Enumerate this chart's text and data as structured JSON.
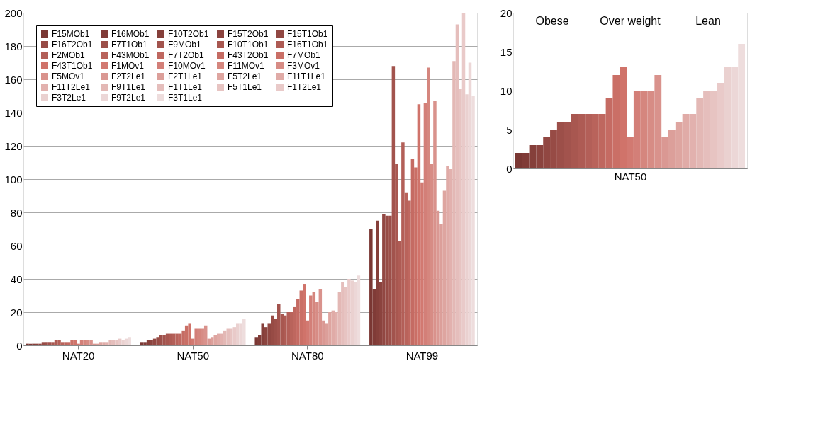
{
  "chart_data": [
    {
      "type": "bar",
      "categories": [
        "NAT20",
        "NAT50",
        "NAT80",
        "NAT99"
      ],
      "ylim": [
        0,
        200
      ],
      "yticks": [
        0,
        20,
        40,
        60,
        80,
        100,
        120,
        140,
        160,
        180,
        200
      ],
      "grid": "y",
      "legend": "top left",
      "series": [
        {
          "name": "F15MOb1",
          "color": "#7a3733",
          "values": [
            1,
            2,
            5,
            70
          ]
        },
        {
          "name": "F16MOb1",
          "color": "#803b37",
          "values": [
            1,
            2,
            6,
            34
          ]
        },
        {
          "name": "F10T2Ob1",
          "color": "#853f3a",
          "values": [
            1,
            3,
            13,
            75
          ]
        },
        {
          "name": "F15T2Ob1",
          "color": "#8b433e",
          "values": [
            1,
            3,
            11,
            38
          ]
        },
        {
          "name": "F15T1Ob1",
          "color": "#914742",
          "values": [
            1,
            4,
            13,
            79
          ]
        },
        {
          "name": "F16T2Ob1",
          "color": "#974b45",
          "values": [
            2,
            5,
            18,
            78
          ]
        },
        {
          "name": "F7T1Ob1",
          "color": "#9c4f49",
          "values": [
            2,
            6,
            16,
            78
          ]
        },
        {
          "name": "F9MOb1",
          "color": "#a2534d",
          "values": [
            2,
            6,
            25,
            168
          ]
        },
        {
          "name": "F10T1Ob1",
          "color": "#a85750",
          "values": [
            2,
            7,
            19,
            109
          ]
        },
        {
          "name": "F16T1Ob1",
          "color": "#ae5b54",
          "values": [
            3,
            7,
            18,
            63
          ]
        },
        {
          "name": "F2MOb1",
          "color": "#b35f58",
          "values": [
            3,
            7,
            20,
            122
          ]
        },
        {
          "name": "F43MOb1",
          "color": "#b9635b",
          "values": [
            2,
            7,
            20,
            92
          ]
        },
        {
          "name": "F7T2Ob1",
          "color": "#bf675f",
          "values": [
            2,
            7,
            23,
            87
          ]
        },
        {
          "name": "F43T2Ob1",
          "color": "#c56b63",
          "values": [
            2,
            9,
            28,
            112
          ]
        },
        {
          "name": "F7MOb1",
          "color": "#ca6f66",
          "values": [
            3,
            12,
            33,
            107
          ]
        },
        {
          "name": "F43T1Ob1",
          "color": "#d0736a",
          "values": [
            3,
            13,
            37,
            145
          ]
        },
        {
          "name": "F1MOv1",
          "color": "#d27971",
          "values": [
            1,
            4,
            15,
            98
          ]
        },
        {
          "name": "F10MOv1",
          "color": "#d37f78",
          "values": [
            3,
            10,
            30,
            146
          ]
        },
        {
          "name": "F11MOv1",
          "color": "#d5867e",
          "values": [
            3,
            10,
            32,
            167
          ]
        },
        {
          "name": "F3MOv1",
          "color": "#d78c85",
          "values": [
            3,
            10,
            26,
            109
          ]
        },
        {
          "name": "F5MOv1",
          "color": "#d9928c",
          "values": [
            3,
            12,
            34,
            147
          ]
        },
        {
          "name": "F2T2Le1",
          "color": "#da9893",
          "values": [
            1,
            4,
            15,
            81
          ]
        },
        {
          "name": "F2T1Le1",
          "color": "#dc9f9a",
          "values": [
            1,
            5,
            13,
            73
          ]
        },
        {
          "name": "F5T2Le1",
          "color": "#dea5a0",
          "values": [
            2,
            6,
            20,
            93
          ]
        },
        {
          "name": "F11T1Le1",
          "color": "#e0aba7",
          "values": [
            2,
            7,
            21,
            108
          ]
        },
        {
          "name": "F11T2Le1",
          "color": "#e2b1ae",
          "values": [
            2,
            7,
            20,
            106
          ]
        },
        {
          "name": "F9T1Le1",
          "color": "#e3b8b5",
          "values": [
            3,
            9,
            32,
            171
          ]
        },
        {
          "name": "F1T1Le1",
          "color": "#e5bebc",
          "values": [
            3,
            10,
            38,
            193
          ]
        },
        {
          "name": "F5T1Le1",
          "color": "#e7c4c2",
          "values": [
            3,
            10,
            35,
            154
          ]
        },
        {
          "name": "F1T2Le1",
          "color": "#e9cac9",
          "values": [
            4,
            11,
            40,
            200
          ]
        },
        {
          "name": "F3T2Le1",
          "color": "#ead1d0",
          "values": [
            3,
            13,
            39,
            151
          ]
        },
        {
          "name": "F9T2Le1",
          "color": "#ecd7d7",
          "values": [
            4,
            13,
            38,
            170
          ]
        },
        {
          "name": "F3T1Le1",
          "color": "#eedddd",
          "values": [
            5,
            16,
            42,
            150
          ]
        }
      ]
    },
    {
      "type": "bar",
      "xlabel": "NAT50",
      "ylim": [
        0,
        20
      ],
      "yticks": [
        0,
        5,
        10,
        15,
        20
      ],
      "grid": "y",
      "tick_labels": "y",
      "annotations": [
        "Obese",
        "Over weight",
        "Lean"
      ],
      "categories": [
        null,
        null,
        null,
        null,
        null,
        null,
        null,
        null,
        null,
        null,
        null,
        null,
        null,
        null,
        null,
        null,
        null,
        null,
        null,
        null,
        null,
        null,
        null,
        null,
        null,
        null,
        null,
        null,
        null,
        null,
        null,
        null,
        null
      ],
      "values": [
        2,
        2,
        3,
        3,
        4,
        5,
        6,
        6,
        7,
        7,
        7,
        7,
        7,
        9,
        12,
        13,
        4,
        10,
        10,
        10,
        12,
        4,
        5,
        6,
        7,
        7,
        9,
        10,
        10,
        11,
        13,
        13,
        16
      ],
      "colors": [
        "#7a3733",
        "#803b37",
        "#853f3a",
        "#8b433e",
        "#914742",
        "#974b45",
        "#9c4f49",
        "#a2534d",
        "#a85750",
        "#ae5b54",
        "#b35f58",
        "#b9635b",
        "#bf675f",
        "#c56b63",
        "#ca6f66",
        "#d0736a",
        "#d27971",
        "#d37f78",
        "#d5867e",
        "#d78c85",
        "#d9928c",
        "#da9893",
        "#dc9f9a",
        "#dea5a0",
        "#e0aba7",
        "#e2b1ae",
        "#e3b8b5",
        "#e5bebc",
        "#e7c4c2",
        "#e9cac9",
        "#ead1d0",
        "#ecd7d7",
        "#eedddd"
      ]
    }
  ]
}
